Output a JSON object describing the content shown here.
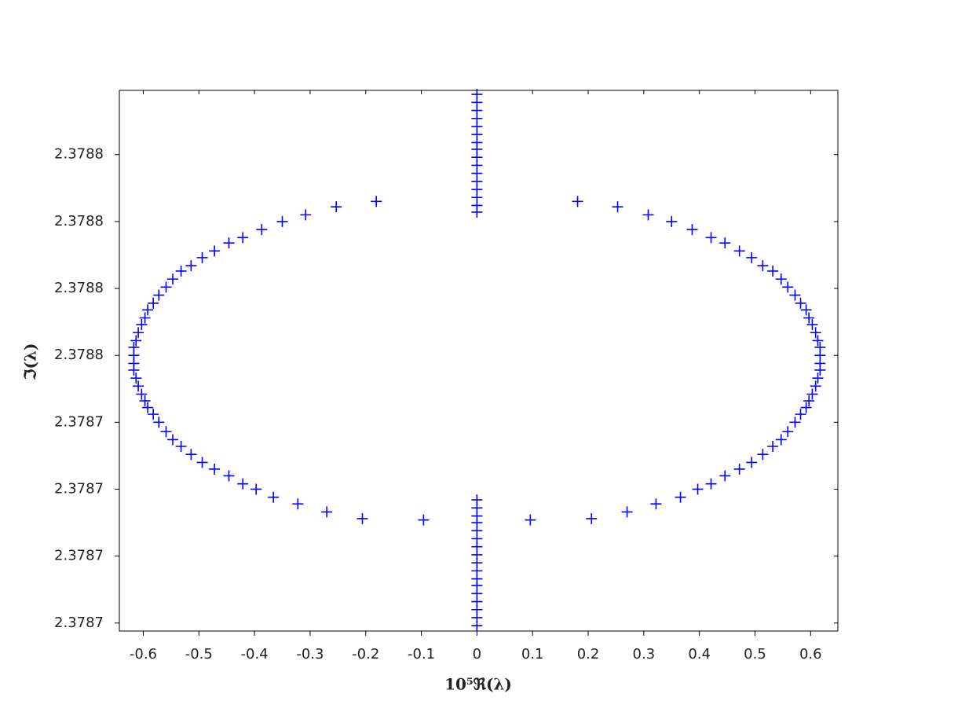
{
  "chart_data": {
    "type": "scatter",
    "marker": "+",
    "color": "#0000ff",
    "xlabel": "10⁵ℜ(λ)",
    "ylabel": "ℑ(λ)",
    "xlim": [
      -0.643,
      0.649
    ],
    "ylim": [
      2.3787294,
      2.3787698
    ],
    "xticks": [
      -0.6,
      -0.5,
      -0.4,
      -0.3,
      -0.2,
      -0.1,
      0,
      0.1,
      0.2,
      0.3,
      0.4,
      0.5,
      0.6
    ],
    "yticks": [
      {
        "value": 2.37873,
        "label": "2.3787"
      },
      {
        "value": 2.378735,
        "label": "2.3787"
      },
      {
        "value": 2.37874,
        "label": "2.3787"
      },
      {
        "value": 2.378745,
        "label": "2.3787"
      },
      {
        "value": 2.37875,
        "label": "2.3788"
      },
      {
        "value": 2.378755,
        "label": "2.3788"
      },
      {
        "value": 2.37876,
        "label": "2.3788"
      },
      {
        "value": 2.378765,
        "label": "2.3788"
      }
    ],
    "x": [
      0,
      0,
      0,
      0,
      0,
      0,
      0,
      0,
      0,
      0,
      0,
      0,
      0,
      0,
      0,
      0,
      0,
      0,
      0,
      0,
      0,
      0,
      0,
      0,
      0,
      0,
      0,
      0,
      0,
      0,
      0,
      0,
      0,
      0.181,
      0.253,
      0.308,
      0.35,
      0.387,
      0.421,
      0.446,
      0.472,
      0.494,
      0.514,
      0.532,
      0.547,
      0.559,
      0.572,
      0.582,
      0.592,
      0.597,
      0.603,
      0.609,
      0.613,
      0.617,
      0.617,
      0.617,
      0.617,
      0.613,
      0.609,
      0.603,
      0.597,
      0.592,
      0.582,
      0.572,
      0.559,
      0.547,
      0.532,
      0.514,
      0.494,
      0.472,
      0.446,
      0.421,
      0.397,
      0.366,
      0.322,
      0.27,
      0.206,
      0.096,
      -0.181,
      -0.253,
      -0.308,
      -0.35,
      -0.387,
      -0.421,
      -0.446,
      -0.472,
      -0.494,
      -0.514,
      -0.532,
      -0.547,
      -0.559,
      -0.572,
      -0.582,
      -0.592,
      -0.597,
      -0.603,
      -0.609,
      -0.613,
      -0.617,
      -0.617,
      -0.617,
      -0.617,
      -0.613,
      -0.609,
      -0.603,
      -0.597,
      -0.592,
      -0.582,
      -0.572,
      -0.559,
      -0.547,
      -0.532,
      -0.514,
      -0.494,
      -0.472,
      -0.446,
      -0.421,
      -0.397,
      -0.366,
      -0.322,
      -0.27,
      -0.206,
      -0.096
    ],
    "values": [
      2.3787695,
      2.3787689,
      2.3787683,
      2.3787677,
      2.3787671,
      2.3787665,
      2.3787659,
      2.3787654,
      2.3787648,
      2.3787642,
      2.3787636,
      2.378763,
      2.3787624,
      2.3787618,
      2.3787612,
      2.3787607,
      2.3787392,
      2.3787386,
      2.378738,
      2.3787375,
      2.3787369,
      2.3787363,
      2.3787357,
      2.3787351,
      2.3787345,
      2.3787339,
      2.3787333,
      2.3787328,
      2.3787322,
      2.3787316,
      2.378731,
      2.3787304,
      2.3787298,
      2.3787615,
      2.3787611,
      2.3787605,
      2.37876,
      2.3787594,
      2.3787588,
      2.3787584,
      2.3787578,
      2.3787573,
      2.3787567,
      2.3787563,
      2.3787557,
      2.3787551,
      2.3787545,
      2.3787539,
      2.3787534,
      2.3787528,
      2.3787523,
      2.3787517,
      2.3787511,
      2.3787506,
      2.37875,
      2.3787494,
      2.3787489,
      2.3787483,
      2.3787477,
      2.3787471,
      2.3787466,
      2.3787461,
      2.3787456,
      2.378745,
      2.3787443,
      2.3787437,
      2.3787432,
      2.3787426,
      2.378742,
      2.3787415,
      2.378741,
      2.3787404,
      2.37874,
      2.3787394,
      2.3787389,
      2.3787383,
      2.3787378,
      2.3787377,
      2.3787615,
      2.3787611,
      2.3787605,
      2.37876,
      2.3787594,
      2.3787588,
      2.3787584,
      2.3787578,
      2.3787573,
      2.3787567,
      2.3787563,
      2.3787557,
      2.3787551,
      2.3787545,
      2.3787539,
      2.3787534,
      2.3787528,
      2.3787523,
      2.3787517,
      2.3787511,
      2.3787506,
      2.37875,
      2.3787494,
      2.3787489,
      2.3787483,
      2.3787477,
      2.3787471,
      2.3787466,
      2.3787461,
      2.3787456,
      2.378745,
      2.3787443,
      2.3787437,
      2.3787432,
      2.3787426,
      2.378742,
      2.3787415,
      2.378741,
      2.3787404,
      2.37874,
      2.3787394,
      2.3787389,
      2.3787383,
      2.3787378,
      2.3787377
    ]
  }
}
